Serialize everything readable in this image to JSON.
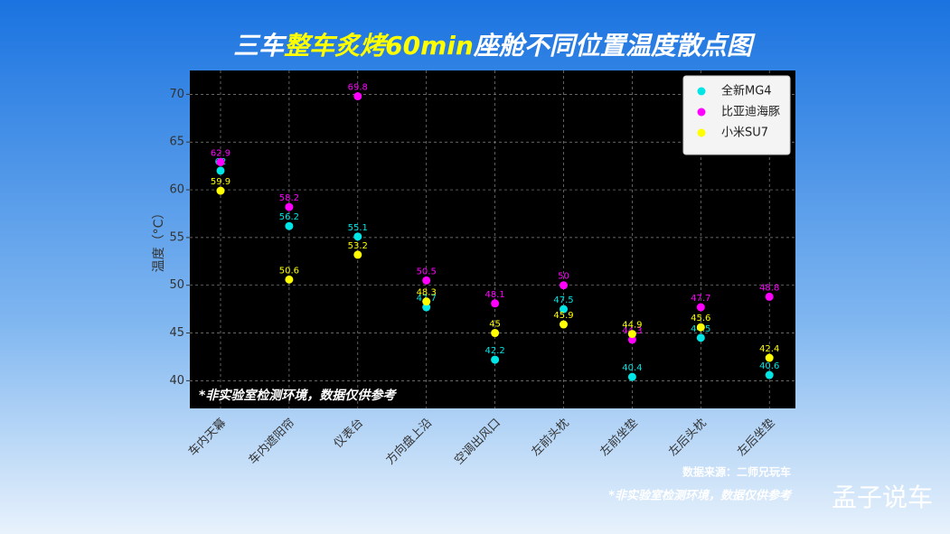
{
  "chart_data": {
    "type": "scatter",
    "title": [
      "三车",
      "整车炙烤60min",
      "座舱不同位置温度散点图"
    ],
    "y_label": "温度（°C）",
    "categories": [
      "车内天幕",
      "车内遮阳帘",
      "仪表台",
      "方向盘上沿",
      "空调出风口",
      "左前头枕",
      "左前坐垫",
      "左后头枕",
      "左后坐垫"
    ],
    "series": [
      {
        "name": "全新MG4",
        "color": "#00e5e5",
        "values": [
          62,
          56.2,
          55.1,
          47.7,
          42.2,
          47.5,
          40.4,
          44.5,
          40.6
        ]
      },
      {
        "name": "比亚迪海豚",
        "color": "#ff00ff",
        "values": [
          62.9,
          58.2,
          69.8,
          50.5,
          48.1,
          50,
          44.3,
          47.7,
          48.8
        ]
      },
      {
        "name": "小米SU7",
        "color": "#ffff00",
        "values": [
          59.9,
          50.6,
          53.2,
          48.3,
          45,
          45.9,
          44.9,
          45.6,
          42.4
        ]
      }
    ],
    "ylim": [
      37.1,
      72.5
    ],
    "yticks": [
      40,
      45,
      50,
      55,
      60,
      65,
      70
    ],
    "grid": true,
    "legend": "upper right",
    "annotation": "*非实验室检测环境，数据仅供参考",
    "source": "数据来源：二师兄玩车",
    "footnote": "*非实验室检测环境，数据仅供参考",
    "watermark": "孟子说车"
  }
}
